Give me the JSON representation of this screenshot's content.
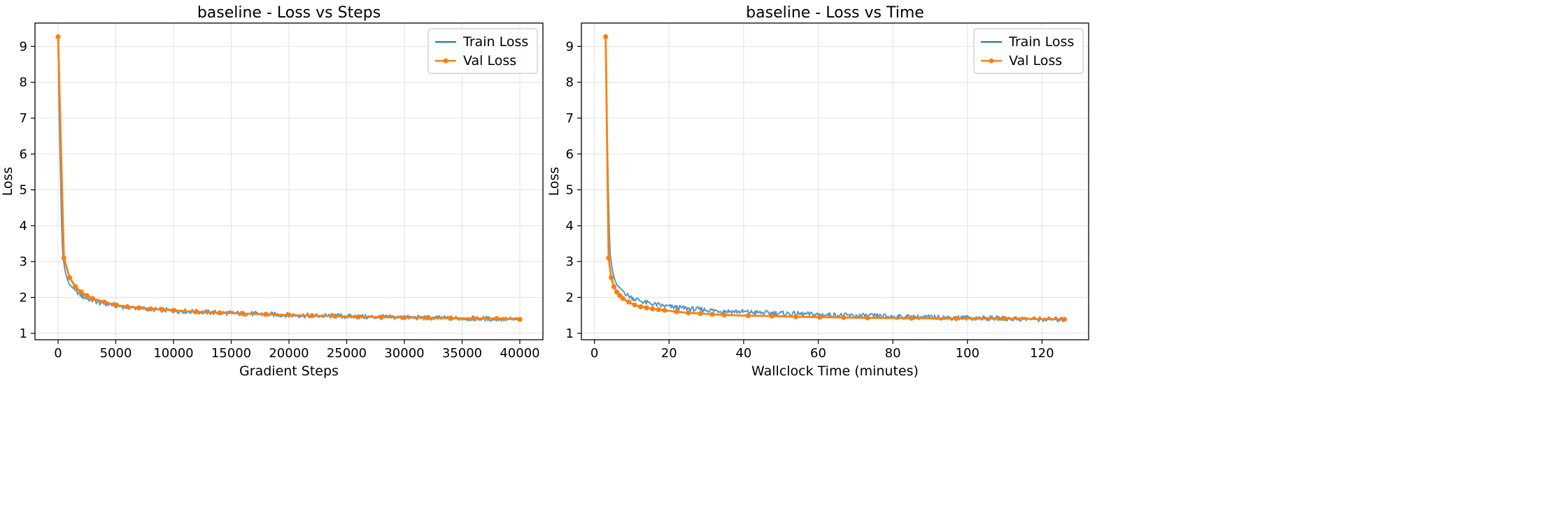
{
  "colors": {
    "train": "#1f77b4",
    "val": "#ff7f0e",
    "grid": "#b0b0b0",
    "axis": "#000000"
  },
  "legend": {
    "train_label": "Train Loss",
    "val_label": "Val Loss",
    "placement": "top-right"
  },
  "chart_data": [
    {
      "type": "line",
      "title": "baseline - Loss vs Steps",
      "xlabel": "Gradient Steps",
      "ylabel": "Loss",
      "xlim": [
        -2000,
        42000
      ],
      "ylim": [
        0.82,
        9.65
      ],
      "xticks": [
        0,
        5000,
        10000,
        15000,
        20000,
        25000,
        30000,
        35000,
        40000
      ],
      "xtick_labels": [
        "0",
        "5000",
        "10000",
        "15000",
        "20000",
        "25000",
        "30000",
        "35000",
        "40000"
      ],
      "yticks": [
        1,
        2,
        3,
        4,
        5,
        6,
        7,
        8,
        9
      ],
      "ytick_labels": [
        "1",
        "2",
        "3",
        "4",
        "5",
        "6",
        "7",
        "8",
        "9"
      ],
      "grid": true,
      "legend_placement": "top-right",
      "series": [
        {
          "name": "Train Loss",
          "style": "line",
          "x": [
            0,
            100,
            200,
            300,
            400,
            600,
            800,
            1000,
            1500,
            2000,
            2500,
            3000,
            3500,
            4000,
            5000,
            6000,
            7000,
            8000,
            9000,
            10000,
            12000,
            14000,
            16000,
            18000,
            20000,
            22000,
            24000,
            26000,
            28000,
            30000,
            32000,
            34000,
            36000,
            38000,
            40000
          ],
          "y": [
            9.25,
            7.0,
            5.6,
            4.1,
            3.2,
            2.75,
            2.5,
            2.35,
            2.2,
            2.05,
            1.97,
            1.92,
            1.86,
            1.83,
            1.77,
            1.73,
            1.7,
            1.67,
            1.65,
            1.63,
            1.6,
            1.57,
            1.55,
            1.53,
            1.51,
            1.49,
            1.48,
            1.46,
            1.45,
            1.44,
            1.43,
            1.42,
            1.41,
            1.4,
            1.38
          ]
        },
        {
          "name": "Val Loss",
          "style": "line-marker",
          "x": [
            0,
            500,
            1000,
            1500,
            2000,
            2500,
            3000,
            4000,
            5000,
            6000,
            7000,
            8000,
            9000,
            10000,
            12000,
            14000,
            16000,
            18000,
            20000,
            22000,
            24000,
            26000,
            28000,
            30000,
            32000,
            34000,
            36000,
            38000,
            40000
          ],
          "y": [
            9.27,
            3.1,
            2.55,
            2.3,
            2.15,
            2.05,
            1.97,
            1.87,
            1.79,
            1.74,
            1.71,
            1.68,
            1.66,
            1.64,
            1.6,
            1.57,
            1.55,
            1.53,
            1.51,
            1.49,
            1.48,
            1.46,
            1.45,
            1.44,
            1.43,
            1.42,
            1.41,
            1.41,
            1.39
          ]
        }
      ]
    },
    {
      "type": "line",
      "title": "baseline - Loss vs Time",
      "xlabel": "Wallclock Time (minutes)",
      "ylabel": "Loss",
      "xlim": [
        -3.5,
        132.5
      ],
      "ylim": [
        0.82,
        9.65
      ],
      "xticks": [
        0,
        20,
        40,
        60,
        80,
        100,
        120
      ],
      "xtick_labels": [
        "0",
        "20",
        "40",
        "60",
        "80",
        "100",
        "120"
      ],
      "yticks": [
        1,
        2,
        3,
        4,
        5,
        6,
        7,
        8,
        9
      ],
      "ytick_labels": [
        "1",
        "2",
        "3",
        "4",
        "5",
        "6",
        "7",
        "8",
        "9"
      ],
      "grid": true,
      "legend_placement": "top-right",
      "series": [
        {
          "name": "Train Loss",
          "style": "line",
          "x": [
            3.0,
            3.3,
            3.6,
            3.9,
            4.2,
            4.8,
            5.4,
            6.0,
            7.5,
            9.0,
            10.5,
            12.0,
            13.5,
            15.0,
            18.0,
            21.0,
            24.0,
            27.0,
            30.0,
            33.0,
            39.0,
            45.0,
            51.0,
            57.0,
            63.0,
            69.0,
            75.0,
            81.0,
            87.0,
            93.0,
            99.0,
            105.0,
            111.0,
            117.0,
            126.0
          ],
          "y": [
            9.25,
            7.0,
            5.6,
            4.1,
            3.2,
            2.75,
            2.5,
            2.35,
            2.2,
            2.05,
            1.97,
            1.92,
            1.86,
            1.83,
            1.77,
            1.73,
            1.7,
            1.67,
            1.65,
            1.63,
            1.6,
            1.57,
            1.55,
            1.53,
            1.51,
            1.49,
            1.48,
            1.46,
            1.45,
            1.44,
            1.43,
            1.42,
            1.41,
            1.4,
            1.38
          ]
        },
        {
          "name": "Val Loss",
          "style": "line-marker",
          "x": [
            3.0,
            3.8,
            4.5,
            5.2,
            6.0,
            6.8,
            7.6,
            9.2,
            10.8,
            12.4,
            14.0,
            15.6,
            17.2,
            18.8,
            22.0,
            25.2,
            28.4,
            31.6,
            34.8,
            41.2,
            47.6,
            54.0,
            60.4,
            66.8,
            73.2,
            85.0,
            97.0,
            110.0,
            126.0
          ],
          "y": [
            9.27,
            3.1,
            2.55,
            2.3,
            2.15,
            2.05,
            1.97,
            1.87,
            1.79,
            1.74,
            1.71,
            1.68,
            1.66,
            1.64,
            1.6,
            1.57,
            1.55,
            1.53,
            1.51,
            1.49,
            1.48,
            1.46,
            1.45,
            1.44,
            1.43,
            1.42,
            1.41,
            1.41,
            1.39
          ]
        }
      ]
    }
  ]
}
